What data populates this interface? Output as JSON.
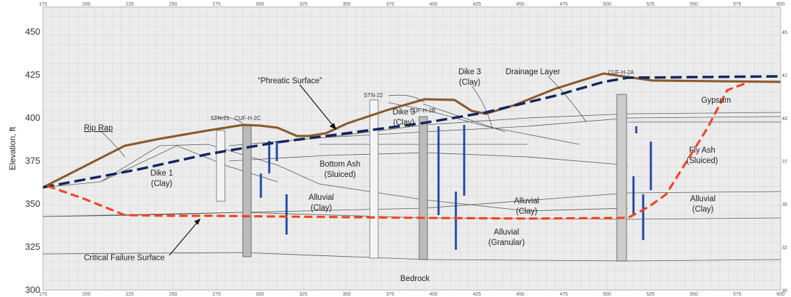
{
  "axis": {
    "y_title": "Elevation, ft",
    "x_ticks": [
      "175",
      "200",
      "225",
      "250",
      "275",
      "300",
      "325",
      "350",
      "375",
      "400",
      "425",
      "450",
      "475",
      "500",
      "525",
      "550",
      "575",
      "600"
    ],
    "y_ticks": [
      "450",
      "425",
      "400",
      "375",
      "350",
      "325",
      "300"
    ],
    "right_ticks": [
      "45",
      "42",
      "40",
      "37",
      "35",
      "32",
      "30"
    ]
  },
  "labels": {
    "rip_rap": "Rip Rap",
    "dike1_a": "Dike 1",
    "dike1_b": "(Clay)",
    "bottom_ash_a": "Bottom Ash",
    "bottom_ash_b": "(Sluiced)",
    "alluvial_clay_l_a": "Alluvial",
    "alluvial_clay_l_b": "(Clay)",
    "dike3_a": "Dike 3",
    "dike3_b": "(Clay)",
    "dike3_top_a": "Dike 3",
    "dike3_top_b": "(Clay)",
    "drainage_layer": "Drainage Layer",
    "phreatic": "“Phreatic Surface”",
    "alluvial_clay_m_a": "Alluvial",
    "alluvial_clay_m_b": "(Clay)",
    "alluvial_gran_a": "Alluvial",
    "alluvial_gran_b": "(Granular)",
    "gypsum": "Gypsum",
    "fly_ash_a": "Fly Ash",
    "fly_ash_b": "(Sluiced)",
    "alluvial_clay_r_a": "Alluvial",
    "alluvial_clay_r_b": "(Clay)",
    "bedrock": "Bedrock",
    "critical_failure": "Critical Failure Surface"
  },
  "borings": {
    "stn21": "STN-21",
    "cufh2c": "CUF-H-2C",
    "stn22": "STN-22",
    "cufh2b": "CUF-H-2B",
    "cufh2a": "CUF-H-2A"
  },
  "colors": {
    "ground_surface": "#8b5a2b",
    "phreatic_surface": "#14265e",
    "critical_failure": "#f0441c",
    "piezometer": "#1f45a8",
    "grid": "#dcdcdc",
    "background": "#ececec"
  }
}
